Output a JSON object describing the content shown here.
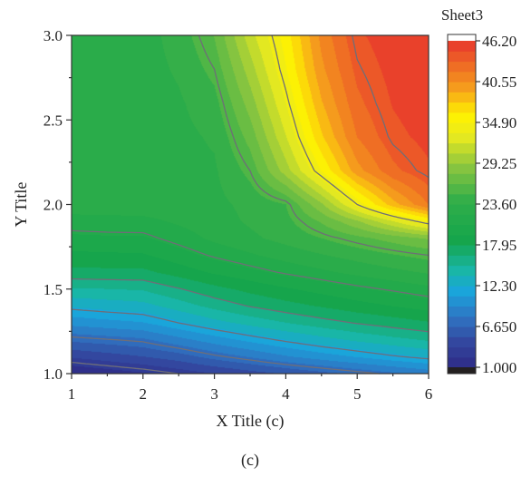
{
  "chart_data": {
    "type": "heatmap",
    "subtype": "filled-contour",
    "caption": "(c)",
    "xlabel": "X Title (c)",
    "ylabel": "Y Title",
    "xlim": [
      1,
      6
    ],
    "ylim": [
      1.0,
      3.0
    ],
    "x_ticks": [
      1,
      2,
      3,
      4,
      5,
      6
    ],
    "y_ticks": [
      "1.0",
      "1.5",
      "2.0",
      "2.5",
      "3.0"
    ],
    "grid": false,
    "colorbar": {
      "title": "Sheet3",
      "min": 1.0,
      "max": 46.2,
      "labels": [
        "46.20",
        "40.55",
        "34.90",
        "29.25",
        "23.60",
        "17.95",
        "12.30",
        "6.650",
        "1.000"
      ],
      "label_values": [
        46.2,
        40.55,
        34.9,
        29.25,
        23.6,
        17.95,
        12.3,
        6.65,
        1.0
      ],
      "levels": 32,
      "colors": [
        {
          "v": 1.0,
          "c": "#2e2a86"
        },
        {
          "v": 4.5,
          "c": "#33479f"
        },
        {
          "v": 8.0,
          "c": "#2f74c2"
        },
        {
          "v": 11.5,
          "c": "#1aa4dc"
        },
        {
          "v": 14.5,
          "c": "#19b6a6"
        },
        {
          "v": 18.5,
          "c": "#15a54c"
        },
        {
          "v": 24.0,
          "c": "#2fae4a"
        },
        {
          "v": 29.0,
          "c": "#8ec63f"
        },
        {
          "v": 33.0,
          "c": "#e8ea1f"
        },
        {
          "v": 36.0,
          "c": "#fff200"
        },
        {
          "v": 39.5,
          "c": "#f6a01c"
        },
        {
          "v": 46.2,
          "c": "#e7362d"
        }
      ],
      "above_color": "#ffffff",
      "below_color": "#231f20"
    },
    "x": [
      1,
      1.5,
      2,
      2.5,
      3,
      3.5,
      4,
      4.5,
      5,
      5.5,
      6
    ],
    "y": [
      1.0,
      1.1,
      1.2,
      1.3,
      1.4,
      1.5,
      1.6,
      1.7,
      1.8,
      1.9,
      2.0,
      2.2,
      2.4,
      2.6,
      2.8,
      3.0
    ],
    "z": [
      [
        1.0,
        1.6,
        2.2,
        3.0,
        3.8,
        4.6,
        5.4,
        6.2,
        7.0,
        7.8,
        8.6
      ],
      [
        4.0,
        4.6,
        5.2,
        6.0,
        7.2,
        8.2,
        9.3,
        10.2,
        11.0,
        11.8,
        12.5
      ],
      [
        7.0,
        7.4,
        7.8,
        9.0,
        10.2,
        11.3,
        12.3,
        13.2,
        14.0,
        14.7,
        15.3
      ],
      [
        10.0,
        10.4,
        10.8,
        12.0,
        13.2,
        14.2,
        15.1,
        15.9,
        16.6,
        17.2,
        17.8
      ],
      [
        12.5,
        12.9,
        13.2,
        14.4,
        15.6,
        16.6,
        17.4,
        18.1,
        18.8,
        19.4,
        20.0
      ],
      [
        15.0,
        15.1,
        15.3,
        16.4,
        17.5,
        18.4,
        19.2,
        19.9,
        20.6,
        21.2,
        21.8
      ],
      [
        17.5,
        17.6,
        17.6,
        18.6,
        19.6,
        20.4,
        21.2,
        21.9,
        22.6,
        23.2,
        23.8
      ],
      [
        19.0,
        19.1,
        19.2,
        20.2,
        21.2,
        22.0,
        22.8,
        23.5,
        24.2,
        24.9,
        25.5
      ],
      [
        20.5,
        20.6,
        20.6,
        21.5,
        22.5,
        23.3,
        24.1,
        25.0,
        26.0,
        27.0,
        28.0
      ],
      [
        21.6,
        21.7,
        21.8,
        22.4,
        23.0,
        23.8,
        24.6,
        26.6,
        29.0,
        32.0,
        35.0
      ],
      [
        23.0,
        23.0,
        23.0,
        23.1,
        23.2,
        24.0,
        25.0,
        29.0,
        34.0,
        38.5,
        42.0
      ],
      [
        23.0,
        23.0,
        23.0,
        23.1,
        23.4,
        25.5,
        30.0,
        35.0,
        40.0,
        43.0,
        44.5
      ],
      [
        23.0,
        23.0,
        23.0,
        23.2,
        23.8,
        27.0,
        32.0,
        37.5,
        42.0,
        44.3,
        45.3
      ],
      [
        23.0,
        23.0,
        23.0,
        23.4,
        24.5,
        28.5,
        33.5,
        39.0,
        43.0,
        44.9,
        45.8
      ],
      [
        23.0,
        23.0,
        23.0,
        23.8,
        25.5,
        30.0,
        34.8,
        40.2,
        43.8,
        45.3,
        46.0
      ],
      [
        23.0,
        23.0,
        23.0,
        24.2,
        26.5,
        31.5,
        35.6,
        41.0,
        44.5,
        45.7,
        46.2
      ]
    ],
    "contour_levels": [
      3.0,
      7.5,
      12.0,
      16.5,
      21.0,
      25.5,
      34.0,
      44.0
    ]
  }
}
